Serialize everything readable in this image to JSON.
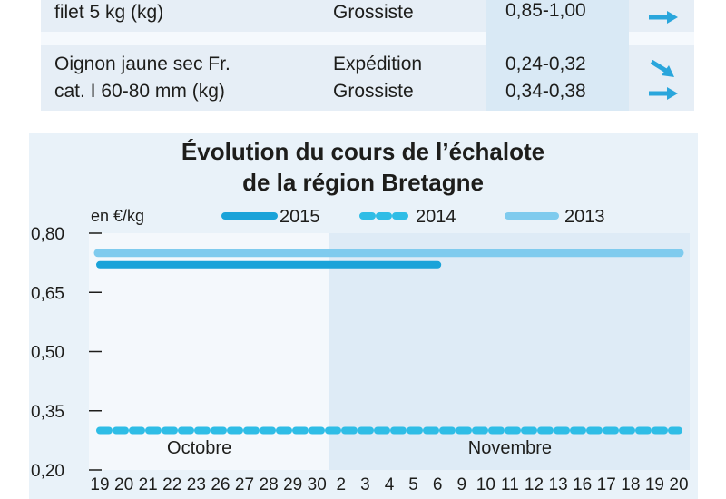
{
  "table": {
    "rows": [
      {
        "product_lines": [
          "filet 5 kg (kg)"
        ],
        "stages": [
          "Grossiste"
        ],
        "prices": [
          "0,85-1,00"
        ],
        "trends": [
          "stable"
        ]
      },
      {
        "product_lines": [
          "Oignon jaune sec Fr.",
          "cat. I 60-80 mm (kg)"
        ],
        "stages": [
          "Expédition",
          "Grossiste"
        ],
        "prices": [
          "0,24-0,32",
          "0,34-0,38"
        ],
        "trends": [
          "down",
          "stable"
        ]
      }
    ]
  },
  "colors": {
    "s2015": "#1aa3d9",
    "s2014": "#2fbde6",
    "s2013": "#7fcbee",
    "panel": "#e9f2f9",
    "plot_oct": "#f4f8fc",
    "plot_nov": "#deebf6",
    "table_highlight": "#d9e9f5"
  },
  "chart_data": {
    "type": "line",
    "title": "Évolution du cours de l’échalote",
    "subtitle": "de la région Bretagne",
    "ylabel": "en €/kg",
    "ylim": [
      0.2,
      0.8
    ],
    "yticks": [
      "0,80",
      "0,65",
      "0,50",
      "0,35",
      "0,20"
    ],
    "ytick_values": [
      0.8,
      0.65,
      0.5,
      0.35,
      0.2
    ],
    "categories": [
      "19",
      "20",
      "21",
      "22",
      "23",
      "26",
      "27",
      "28",
      "29",
      "30",
      "2",
      "3",
      "4",
      "5",
      "6",
      "9",
      "10",
      "11",
      "12",
      "13",
      "16",
      "17",
      "18",
      "19",
      "20"
    ],
    "month_labels": [
      {
        "label": "Octobre",
        "from": 0,
        "to": 9
      },
      {
        "label": "Novembre",
        "from": 10,
        "to": 24
      }
    ],
    "series": [
      {
        "name": "2015",
        "style": "solid",
        "values": [
          0.72,
          0.72,
          0.72,
          0.72,
          0.72,
          0.72,
          0.72,
          0.72,
          0.72,
          0.72,
          0.72,
          0.72,
          0.72,
          0.72,
          0.72,
          null,
          null,
          null,
          null,
          null,
          null,
          null,
          null,
          null,
          null
        ]
      },
      {
        "name": "2014",
        "style": "dashed",
        "values": [
          0.3,
          0.3,
          0.3,
          0.3,
          0.3,
          0.3,
          0.3,
          0.3,
          0.3,
          0.3,
          0.3,
          0.3,
          0.3,
          0.3,
          0.3,
          0.3,
          0.3,
          0.3,
          0.3,
          0.3,
          0.3,
          0.3,
          0.3,
          0.3,
          0.3
        ]
      },
      {
        "name": "2013",
        "style": "light",
        "values": [
          0.75,
          0.75,
          0.75,
          0.75,
          0.75,
          0.75,
          0.75,
          0.75,
          0.75,
          0.75,
          0.75,
          0.75,
          0.75,
          0.75,
          0.75,
          0.75,
          0.75,
          0.75,
          0.75,
          0.75,
          0.75,
          0.75,
          0.75,
          0.75,
          0.75
        ]
      }
    ],
    "grid": false,
    "legend_position": "top"
  }
}
